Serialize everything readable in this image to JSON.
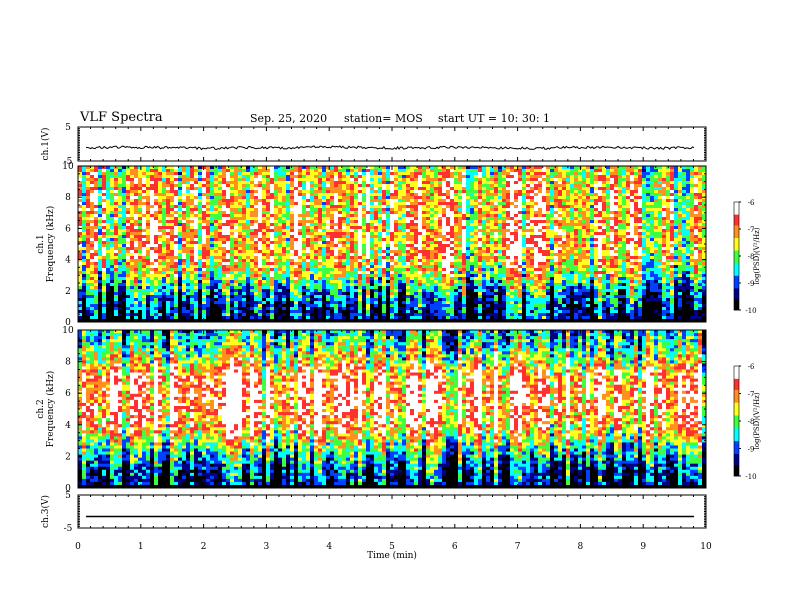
{
  "header": {
    "title": "VLF Spectra",
    "date": "Sep. 25, 2020",
    "station": "station= MOS",
    "start_ut": "start  UT =   10: 30: 1"
  },
  "colors": {
    "colormap": [
      "#ffffff",
      "#ff3030",
      "#ff9020",
      "#ffff20",
      "#40ff40",
      "#00ffff",
      "#0040ff",
      "#000080",
      "#000000"
    ]
  },
  "chart_data": [
    {
      "type": "line",
      "panel": "ch1-waveform",
      "ylabel": "ch.1(V)",
      "ylim": [
        -5,
        5
      ],
      "yticks": [
        "5",
        "-5"
      ],
      "series": [
        {
          "values_note": "",
          "values": [
            -1.2,
            -0.9,
            -1.1,
            -1.3,
            -1.0,
            -1.2,
            -0.8,
            -1.1,
            -1.2,
            -1.0,
            -1.1,
            -1.3,
            -1.0,
            -0.9,
            -1.2,
            -1.1
          ]
        }
      ]
    },
    {
      "type": "heatmap",
      "panel": "ch1-spectrogram",
      "ylabel": "ch.1\nFrequency (kHz)",
      "ylim": [
        0,
        10
      ],
      "yticks": [
        "0",
        "2",
        "4",
        "6",
        "8",
        "10"
      ],
      "colorbar": {
        "label": "log(PSD)(V²/Hz)",
        "range": [
          -10,
          -6
        ],
        "ticks": [
          "-6",
          "-7",
          "-8",
          "-9",
          "-10"
        ]
      },
      "intensity_profile": [
        0.15,
        0.2,
        0.35,
        0.55,
        0.7,
        0.72,
        0.72,
        0.7,
        0.7,
        0.68,
        0.55
      ]
    },
    {
      "type": "heatmap",
      "panel": "ch2-spectrogram",
      "ylabel": "ch.2\nFrequency (kHz)",
      "ylim": [
        0,
        10
      ],
      "yticks": [
        "0",
        "2",
        "4",
        "6",
        "8",
        "10"
      ],
      "colorbar": {
        "label": "log(PSD)(V²/Hz)",
        "range": [
          -10,
          -6
        ],
        "ticks": [
          "-6",
          "-7",
          "-8",
          "-9",
          "-10"
        ]
      },
      "intensity_profile": [
        0.12,
        0.18,
        0.35,
        0.55,
        0.75,
        0.82,
        0.85,
        0.8,
        0.6,
        0.45,
        0.35
      ]
    },
    {
      "type": "line",
      "panel": "ch3-waveform",
      "ylabel": "ch.3(V)",
      "ylim": [
        -5,
        5
      ],
      "yticks": [
        "5",
        "-5"
      ],
      "xlabel": "Time (min)",
      "xlim": [
        0,
        10
      ],
      "xticks": [
        "0",
        "1",
        "2",
        "3",
        "4",
        "5",
        "6",
        "7",
        "8",
        "9",
        "10"
      ],
      "series": [
        {
          "values": [
            -1.5,
            -1.5
          ]
        }
      ]
    }
  ]
}
